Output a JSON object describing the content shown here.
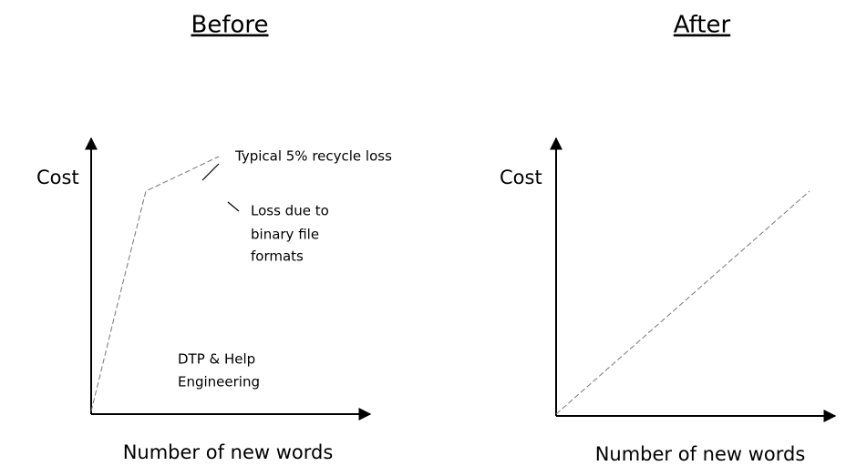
{
  "panels": [
    {
      "title": "Before",
      "y_label": "Cost",
      "x_label": "Number of new words",
      "annotations": [
        {
          "lines": [
            "Typical 5% recycle loss"
          ]
        },
        {
          "lines": [
            "Loss due to",
            "binary file",
            "formats"
          ]
        },
        {
          "lines": [
            "DTP & Help",
            "Engineering"
          ]
        }
      ]
    },
    {
      "title": "After",
      "y_label": "Cost",
      "x_label": "Number of new words",
      "annotations": []
    }
  ]
}
